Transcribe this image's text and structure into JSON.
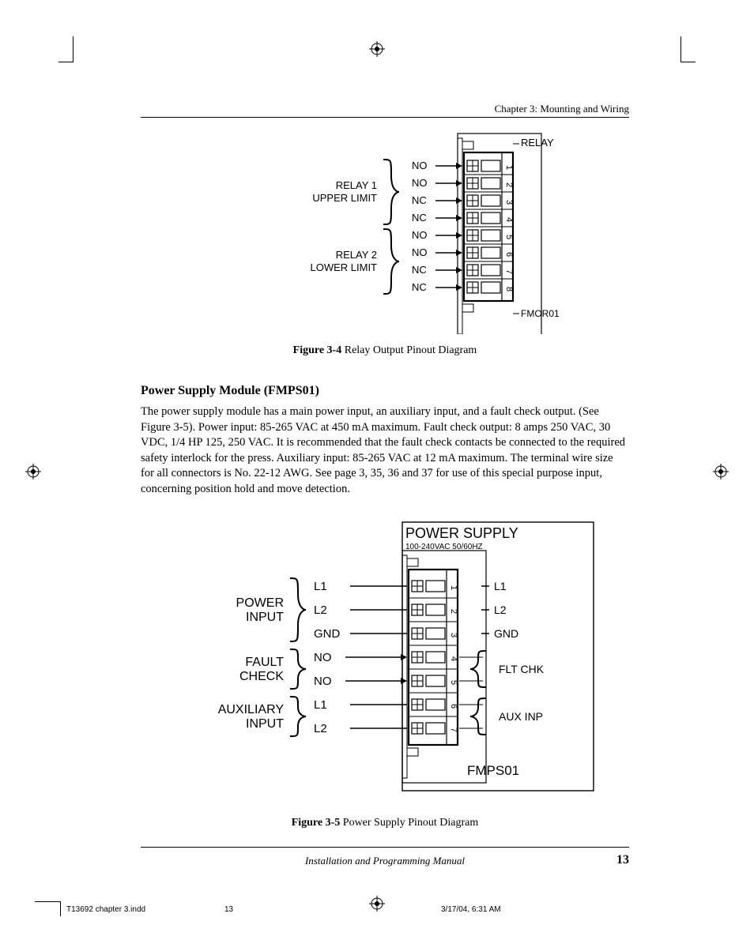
{
  "header": {
    "chapter": "Chapter 3:  Mounting and Wiring"
  },
  "fig34": {
    "caption_bold": "Figure 3-4",
    "caption_rest": "  Relay Output Pinout Diagram",
    "module_label": "RELAY",
    "module_id": "FMOR01",
    "groups": [
      {
        "title_top": "RELAY 1",
        "title_bot": "UPPER LIMIT",
        "pins": [
          "NO",
          "NO",
          "NC",
          "NC"
        ]
      },
      {
        "title_top": "RELAY 2",
        "title_bot": "LOWER LIMIT",
        "pins": [
          "NO",
          "NO",
          "NC",
          "NC"
        ]
      }
    ],
    "terminal_numbers": [
      "1",
      "2",
      "3",
      "4",
      "5",
      "6",
      "7",
      "8"
    ]
  },
  "section": {
    "heading": "Power Supply Module (FMPS01)",
    "body": "The power supply module has a main power input, an auxiliary input, and a fault check output. (See Figure 3-5).  Power input: 85-265 VAC at 450 mA maximum.  Fault check output: 8 amps 250 VAC, 30 VDC, 1/4 HP 125, 250 VAC.  It is recommended that the fault check contacts be connected to the required safety interlock for the press.  Auxiliary input: 85-265 VAC at 12 mA maximum.  The terminal wire size for all connectors is No. 22-12 AWG. See page 3,  35, 36 and 37 for use of this special purpose input, concerning position hold and move detection."
  },
  "fig35": {
    "caption_bold": "Figure 3-5",
    "caption_rest": "  Power Supply Pinout Diagram",
    "module_label": "POWER SUPPLY",
    "module_sublabel": "100-240VAC 50/60HZ",
    "module_id": "FMPS01",
    "left_groups": [
      {
        "title_top": "POWER",
        "title_bot": "INPUT",
        "pins": [
          "L1",
          "L2",
          "GND"
        ],
        "arrows": false
      },
      {
        "title_top": "FAULT",
        "title_bot": "CHECK",
        "pins": [
          "NO",
          "NO"
        ],
        "arrows": true
      },
      {
        "title_top": "AUXILIARY",
        "title_bot": "INPUT",
        "pins": [
          "L1",
          "L2"
        ],
        "arrows": false
      }
    ],
    "terminal_numbers": [
      "1",
      "2",
      "3",
      "4",
      "5",
      "6",
      "7"
    ],
    "right_groups": [
      {
        "lines": [
          "L1",
          "L2",
          "GND"
        ],
        "brace": null,
        "count": 3
      },
      {
        "lines": [
          "FLT CHK"
        ],
        "brace": true,
        "count": 2
      },
      {
        "lines": [
          "AUX INP"
        ],
        "brace": true,
        "count": 2
      }
    ]
  },
  "footer": {
    "center": "Installation and Programming Manual",
    "page": "13",
    "slug_file": "T13692 chapter 3.indd",
    "slug_page": "13",
    "slug_date": "3/17/04, 6:31 AM"
  },
  "style": {
    "stroke": "#000000",
    "font_sans": "Arial, Helvetica, sans-serif",
    "diagram_stroke_w": 1.5,
    "diagram_stroke_bold": 2.2
  }
}
